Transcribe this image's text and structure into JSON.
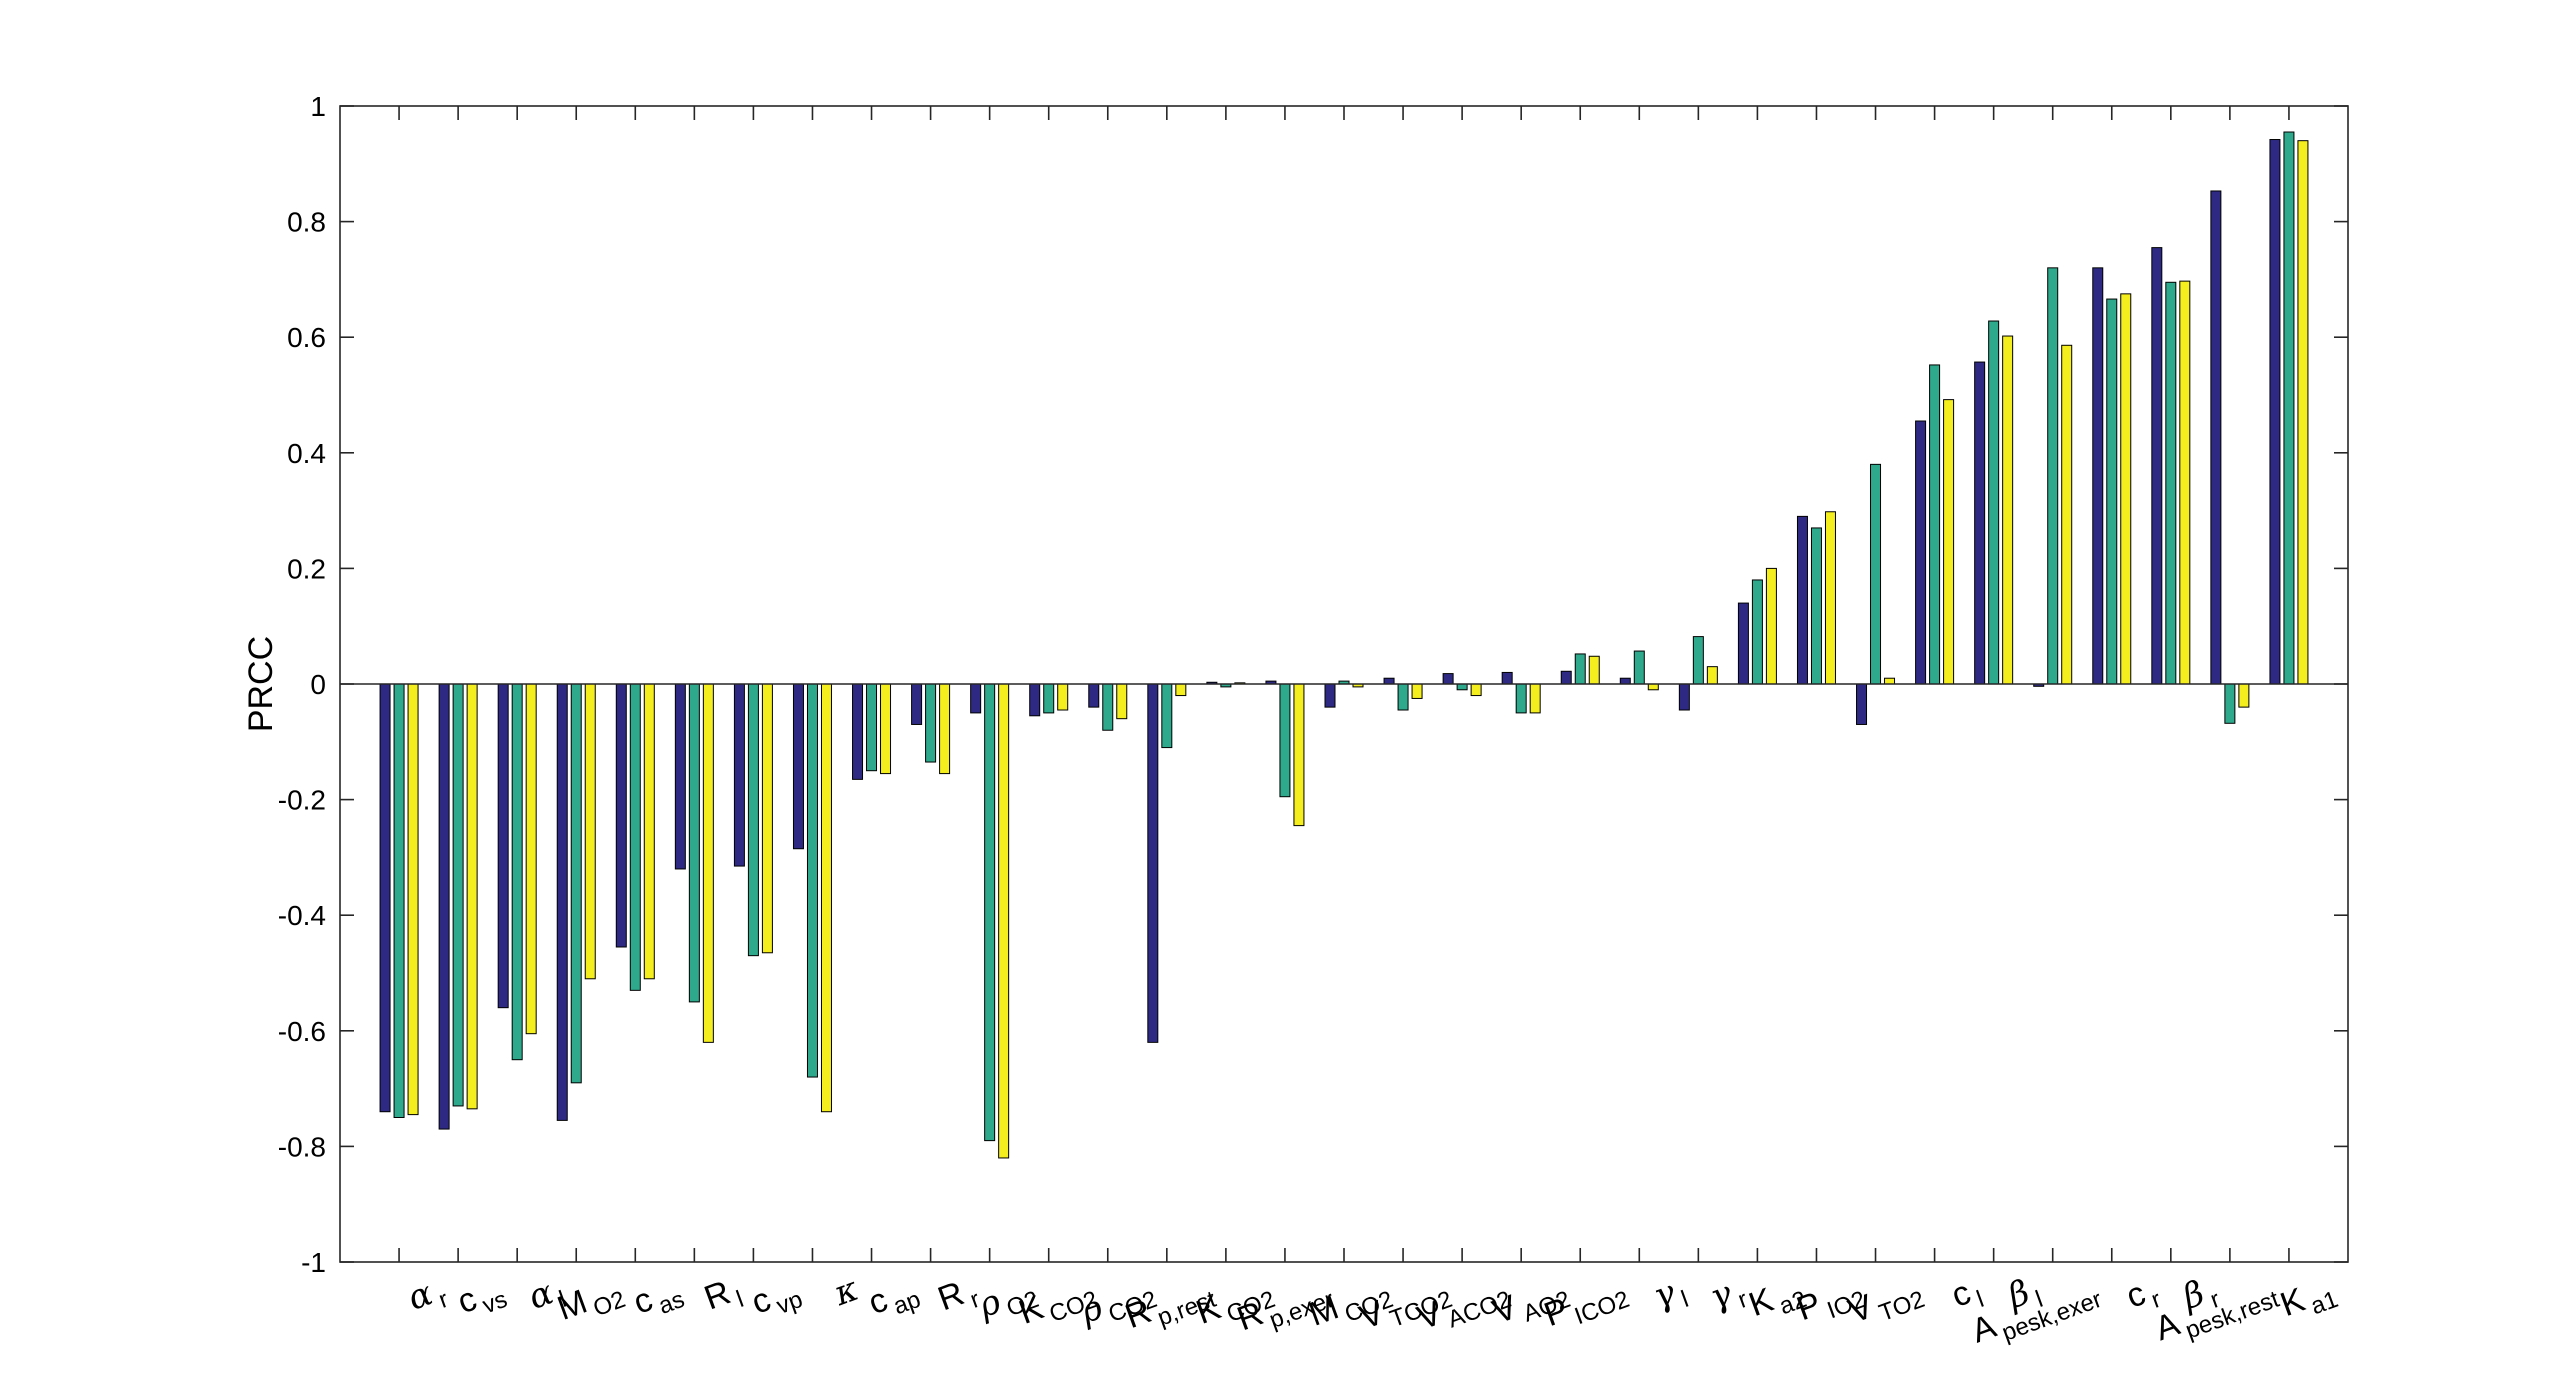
{
  "chart_data": {
    "type": "bar",
    "ylabel": "PRCC",
    "xlabel": "",
    "ylim": [
      -1,
      1
    ],
    "yticks": [
      -1,
      -0.8,
      -0.6,
      -0.4,
      -0.2,
      0,
      0.2,
      0.4,
      0.6,
      0.8,
      1
    ],
    "ytick_labels": [
      "-1",
      "-0.8",
      "-0.6",
      "-0.4",
      "-0.2",
      "0",
      "0.2",
      "0.4",
      "0.6",
      "0.8",
      "1"
    ],
    "grid": false,
    "legend": "none",
    "categories": [
      {
        "main": "α",
        "sub": "r",
        "greek": true
      },
      {
        "main": "c",
        "sub": "vs",
        "greek": false
      },
      {
        "main": "α",
        "sub": "l",
        "greek": true
      },
      {
        "main": "M",
        "sub": "O2",
        "greek": false
      },
      {
        "main": "c",
        "sub": "as",
        "greek": false
      },
      {
        "main": "R",
        "sub": "l",
        "greek": false
      },
      {
        "main": "c",
        "sub": "vp",
        "greek": false
      },
      {
        "main": "κ",
        "sub": "",
        "greek": true
      },
      {
        "main": "c",
        "sub": "ap",
        "greek": false
      },
      {
        "main": "R",
        "sub": "r",
        "greek": false
      },
      {
        "main": "ρ",
        "sub": "O2",
        "greek": true
      },
      {
        "main": "K",
        "sub": "CO2",
        "greek": false
      },
      {
        "main": "ρ",
        "sub": "CO2",
        "greek": true
      },
      {
        "main": "R",
        "sub": "p,rest",
        "greek": false
      },
      {
        "main": "K",
        "sub": "CO2",
        "greek": false
      },
      {
        "main": "R",
        "sub": "p,exer",
        "greek": false
      },
      {
        "main": "M",
        "sub": "CO2",
        "greek": false
      },
      {
        "main": "V",
        "sub": "TCO2",
        "greek": false
      },
      {
        "main": "V",
        "sub": "ACO2",
        "greek": false
      },
      {
        "main": "V",
        "sub": "AO2",
        "greek": false
      },
      {
        "main": "P",
        "sub": "ICO2",
        "greek": false
      },
      {
        "main": "γ",
        "sub": "l",
        "greek": true
      },
      {
        "main": "γ",
        "sub": "r",
        "greek": true
      },
      {
        "main": "K",
        "sub": "a2",
        "greek": false
      },
      {
        "main": "P",
        "sub": "IO2",
        "greek": false
      },
      {
        "main": "V",
        "sub": "TO2",
        "greek": false
      },
      {
        "main": "c",
        "sub": "l",
        "greek": false
      },
      {
        "main": "β",
        "sub": "l",
        "greek": true
      },
      {
        "main": "A",
        "sub": "pesk,exer",
        "greek": false
      },
      {
        "main": "c",
        "sub": "r",
        "greek": false
      },
      {
        "main": "β",
        "sub": "r",
        "greek": true
      },
      {
        "main": "A",
        "sub": "pesk,rest",
        "greek": false
      },
      {
        "main": "K",
        "sub": "a1",
        "greek": false
      }
    ],
    "series": [
      {
        "color": "#2e2a84",
        "values": [
          -0.74,
          -0.77,
          -0.56,
          -0.755,
          -0.455,
          -0.32,
          -0.315,
          -0.285,
          -0.165,
          -0.07,
          -0.05,
          -0.055,
          -0.04,
          -0.62,
          0.003,
          0.005,
          -0.04,
          0.01,
          0.018,
          0.02,
          0.022,
          0.01,
          -0.045,
          0.14,
          0.29,
          -0.07,
          0.455,
          0.557,
          -0.004,
          0.72,
          0.755,
          0.853,
          0.942
        ]
      },
      {
        "color": "#2fa98c",
        "values": [
          -0.75,
          -0.73,
          -0.65,
          -0.69,
          -0.53,
          -0.55,
          -0.47,
          -0.68,
          -0.15,
          -0.135,
          -0.79,
          -0.05,
          -0.08,
          -0.11,
          -0.005,
          -0.195,
          0.005,
          -0.045,
          -0.01,
          -0.05,
          0.052,
          0.057,
          0.082,
          0.18,
          0.27,
          0.38,
          0.552,
          0.628,
          0.72,
          0.666,
          0.695,
          -0.068,
          0.955
        ]
      },
      {
        "color": "#f4ee1f",
        "values": [
          -0.745,
          -0.735,
          -0.605,
          -0.51,
          -0.51,
          -0.62,
          -0.465,
          -0.74,
          -0.155,
          -0.155,
          -0.82,
          -0.045,
          -0.06,
          -0.02,
          0.002,
          -0.245,
          -0.005,
          -0.025,
          -0.02,
          -0.05,
          0.048,
          -0.01,
          0.03,
          0.2,
          0.298,
          0.01,
          0.492,
          0.602,
          0.586,
          0.675,
          0.697,
          -0.04,
          0.94
        ]
      }
    ]
  }
}
